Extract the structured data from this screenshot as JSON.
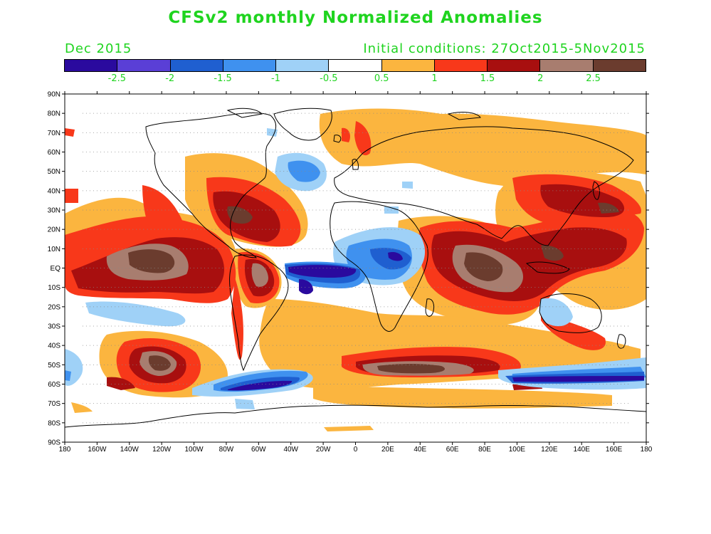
{
  "title": "CFSv2 monthly Normalized Anomalies",
  "month_label": "Dec 2015",
  "init_label": "Initial conditions: 27Oct2015-5Nov2015",
  "colorbar": {
    "colors": [
      "#2a0a9e",
      "#5a3fd6",
      "#1f5fd0",
      "#3f91ef",
      "#9fd1f7",
      "#ffffff",
      "#fbb53f",
      "#f8381a",
      "#a80f0f",
      "#a87d6f",
      "#6b3c2e"
    ],
    "labels": [
      "-2.5",
      "-2",
      "-1.5",
      "-1",
      "-0.5",
      "0.5",
      "1",
      "1.5",
      "2",
      "2.5"
    ]
  },
  "axes": {
    "lat_labels": [
      "90N",
      "80N",
      "70N",
      "60N",
      "50N",
      "40N",
      "30N",
      "20N",
      "10N",
      "EQ",
      "10S",
      "20S",
      "30S",
      "40S",
      "50S",
      "60S",
      "70S",
      "80S",
      "90S"
    ],
    "lon_labels": [
      "180",
      "160W",
      "140W",
      "120W",
      "100W",
      "80W",
      "60W",
      "40W",
      "20W",
      "0",
      "20E",
      "40E",
      "60E",
      "80E",
      "100E",
      "120E",
      "140E",
      "160E",
      "180"
    ]
  }
}
